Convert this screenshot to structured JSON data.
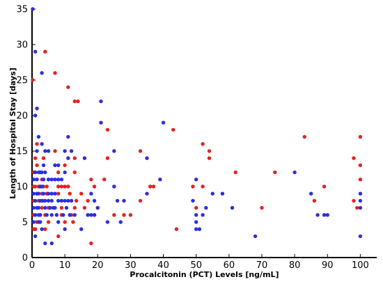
{
  "chart_data": {
    "type": "scatter",
    "title": "",
    "xlabel": "Procalcitonin (PCT) Levels [ng/mL]",
    "ylabel": "Length of Hospital Stay [days]",
    "xlim": [
      0,
      105
    ],
    "ylim": [
      0,
      35
    ],
    "xticks": [
      0,
      10,
      20,
      30,
      40,
      50,
      60,
      70,
      80,
      90,
      100
    ],
    "yticks": [
      0,
      5,
      10,
      15,
      20,
      25,
      30,
      35
    ],
    "grid": false,
    "legend": "none",
    "series": [
      {
        "color": "#e8211f",
        "points": [
          [
            0.2,
            25
          ],
          [
            0.5,
            4
          ],
          [
            0.5,
            6
          ],
          [
            0.5,
            8
          ],
          [
            0.5,
            10
          ],
          [
            0.5,
            12
          ],
          [
            1,
            10
          ],
          [
            1,
            14
          ],
          [
            1,
            4
          ],
          [
            1.5,
            16
          ],
          [
            1.5,
            13
          ],
          [
            1.5,
            9
          ],
          [
            1.5,
            7
          ],
          [
            1.5,
            5
          ],
          [
            2,
            10
          ],
          [
            2,
            8
          ],
          [
            2.5,
            6
          ],
          [
            3,
            11
          ],
          [
            3,
            9
          ],
          [
            3,
            7
          ],
          [
            3.5,
            14
          ],
          [
            3.5,
            10
          ],
          [
            3.5,
            8
          ],
          [
            4,
            29
          ],
          [
            4,
            6
          ],
          [
            4,
            4
          ],
          [
            4.5,
            10
          ],
          [
            4.5,
            9
          ],
          [
            5,
            7
          ],
          [
            5,
            5
          ],
          [
            7,
            26
          ],
          [
            7,
            15
          ],
          [
            8,
            12
          ],
          [
            8,
            10
          ],
          [
            8,
            9
          ],
          [
            8,
            3
          ],
          [
            9,
            10
          ],
          [
            9,
            8
          ],
          [
            9,
            7
          ],
          [
            9,
            6
          ],
          [
            10,
            13
          ],
          [
            10,
            10
          ],
          [
            10,
            5
          ],
          [
            11,
            24
          ],
          [
            11,
            10
          ],
          [
            11.5,
            9
          ],
          [
            12,
            8
          ],
          [
            12,
            6
          ],
          [
            12.5,
            5
          ],
          [
            13,
            22
          ],
          [
            13,
            14
          ],
          [
            13,
            12
          ],
          [
            13,
            7
          ],
          [
            13.5,
            8
          ],
          [
            14,
            22
          ],
          [
            15,
            9
          ],
          [
            16,
            7
          ],
          [
            17,
            8
          ],
          [
            18,
            2
          ],
          [
            18,
            11
          ],
          [
            19,
            10
          ],
          [
            19,
            6
          ],
          [
            20,
            7
          ],
          [
            22,
            11
          ],
          [
            23,
            18
          ],
          [
            23,
            14
          ],
          [
            25,
            6
          ],
          [
            28,
            6
          ],
          [
            30,
            6
          ],
          [
            33,
            15
          ],
          [
            33,
            8
          ],
          [
            36,
            10
          ],
          [
            37,
            10
          ],
          [
            43,
            18
          ],
          [
            44,
            4
          ],
          [
            49,
            10
          ],
          [
            50,
            7
          ],
          [
            52,
            16
          ],
          [
            52,
            10
          ],
          [
            54,
            15
          ],
          [
            54,
            14
          ],
          [
            62,
            12
          ],
          [
            70,
            7
          ],
          [
            74,
            12
          ],
          [
            83,
            17
          ],
          [
            86,
            8
          ],
          [
            89,
            10
          ],
          [
            98,
            14
          ],
          [
            98,
            8
          ],
          [
            99,
            7
          ],
          [
            100,
            17
          ],
          [
            100,
            13
          ],
          [
            100,
            11
          ]
        ]
      },
      {
        "color": "#2b2fe0",
        "points": [
          [
            0.2,
            35
          ],
          [
            1,
            29
          ],
          [
            0.5,
            11
          ],
          [
            0.5,
            9
          ],
          [
            0.5,
            7
          ],
          [
            0.5,
            5
          ],
          [
            1,
            20
          ],
          [
            1,
            12
          ],
          [
            1,
            8
          ],
          [
            1,
            6
          ],
          [
            1,
            3
          ],
          [
            1.5,
            21
          ],
          [
            1.5,
            15
          ],
          [
            1.5,
            11
          ],
          [
            1.5,
            9
          ],
          [
            1.5,
            7
          ],
          [
            2,
            17
          ],
          [
            2,
            12
          ],
          [
            2,
            9
          ],
          [
            2,
            7
          ],
          [
            2,
            6
          ],
          [
            2,
            5
          ],
          [
            2.5,
            12
          ],
          [
            2.5,
            10
          ],
          [
            2.5,
            8
          ],
          [
            2.5,
            6
          ],
          [
            2.5,
            5
          ],
          [
            3,
            26
          ],
          [
            3,
            16
          ],
          [
            3,
            12
          ],
          [
            3,
            10
          ],
          [
            3,
            8
          ],
          [
            3,
            4
          ],
          [
            3.5,
            13
          ],
          [
            3.5,
            11
          ],
          [
            3.5,
            9
          ],
          [
            4,
            15
          ],
          [
            4,
            12
          ],
          [
            4,
            8
          ],
          [
            4,
            7
          ],
          [
            4,
            2
          ],
          [
            4.5,
            6
          ],
          [
            5,
            15
          ],
          [
            5,
            11
          ],
          [
            5,
            9
          ],
          [
            5,
            8
          ],
          [
            5.5,
            7
          ],
          [
            6,
            11
          ],
          [
            6,
            9
          ],
          [
            6,
            8
          ],
          [
            6,
            6
          ],
          [
            6,
            2
          ],
          [
            6.5,
            7
          ],
          [
            7,
            13
          ],
          [
            7,
            11
          ],
          [
            7,
            9
          ],
          [
            7,
            7
          ],
          [
            7.5,
            6
          ],
          [
            8,
            13
          ],
          [
            8,
            11
          ],
          [
            8,
            8
          ],
          [
            8,
            5
          ],
          [
            9,
            11
          ],
          [
            9,
            8
          ],
          [
            9.5,
            6
          ],
          [
            10,
            15
          ],
          [
            10,
            12
          ],
          [
            10,
            8
          ],
          [
            10,
            4
          ],
          [
            10.5,
            7
          ],
          [
            11,
            17
          ],
          [
            11,
            14
          ],
          [
            11,
            8
          ],
          [
            11.5,
            6
          ],
          [
            12,
            15
          ],
          [
            12,
            8
          ],
          [
            13,
            6
          ],
          [
            15,
            4
          ],
          [
            16,
            14
          ],
          [
            17,
            6
          ],
          [
            18,
            9
          ],
          [
            18,
            6
          ],
          [
            19,
            8
          ],
          [
            19,
            6
          ],
          [
            20,
            7
          ],
          [
            21,
            22
          ],
          [
            21,
            19
          ],
          [
            23,
            5
          ],
          [
            25,
            15
          ],
          [
            25,
            10
          ],
          [
            26,
            8
          ],
          [
            27,
            5
          ],
          [
            28,
            8
          ],
          [
            35,
            14
          ],
          [
            35,
            9
          ],
          [
            39,
            11
          ],
          [
            40,
            19
          ],
          [
            50,
            11
          ],
          [
            49,
            8
          ],
          [
            50,
            6
          ],
          [
            50,
            5
          ],
          [
            50,
            4
          ],
          [
            51,
            4
          ],
          [
            52,
            6
          ],
          [
            53,
            7
          ],
          [
            55,
            9
          ],
          [
            58,
            9
          ],
          [
            61,
            7
          ],
          [
            68,
            3
          ],
          [
            80,
            12
          ],
          [
            85,
            9
          ],
          [
            87,
            6
          ],
          [
            89,
            6
          ],
          [
            90,
            6
          ],
          [
            100,
            9
          ],
          [
            100,
            8
          ],
          [
            100,
            7
          ],
          [
            100,
            3
          ]
        ]
      }
    ]
  }
}
